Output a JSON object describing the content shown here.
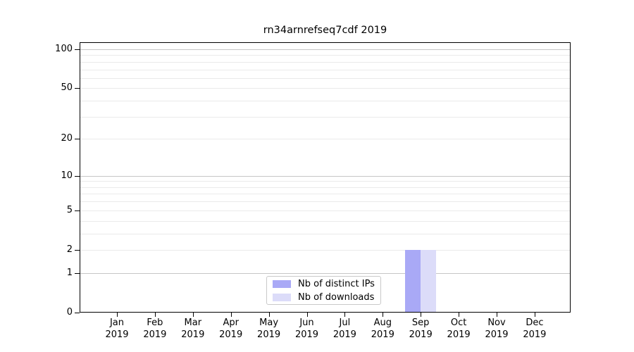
{
  "chart_data": {
    "type": "bar",
    "title": "rn34arnrefseq7cdf 2019",
    "categories": [
      "Jan",
      "Feb",
      "Mar",
      "Apr",
      "May",
      "Jun",
      "Jul",
      "Aug",
      "Sep",
      "Oct",
      "Nov",
      "Dec"
    ],
    "year_label": "2019",
    "series": [
      {
        "name": "Nb of distinct IPs",
        "color": "#a9a9f6",
        "values": [
          0,
          0,
          0,
          0,
          0,
          0,
          0,
          0,
          2,
          0,
          0,
          0
        ]
      },
      {
        "name": "Nb of downloads",
        "color": "#dcdcf9",
        "values": [
          0,
          0,
          0,
          0,
          0,
          0,
          0,
          0,
          2,
          0,
          0,
          0
        ]
      }
    ],
    "yscale": "log1p",
    "ylim": [
      0,
      100
    ],
    "yticks": [
      0,
      1,
      2,
      5,
      10,
      20,
      50,
      100
    ],
    "major_gridlines": [
      1,
      10,
      100
    ],
    "minor_gridlines": [
      2,
      3,
      4,
      5,
      6,
      7,
      8,
      9,
      20,
      30,
      40,
      50,
      60,
      70,
      80,
      90
    ],
    "grid": true,
    "grid_major_color": "#c6c6c6",
    "grid_minor_color": "#eaeaea",
    "legend_position": "lower-center",
    "axes_edge_color": "#000000"
  }
}
